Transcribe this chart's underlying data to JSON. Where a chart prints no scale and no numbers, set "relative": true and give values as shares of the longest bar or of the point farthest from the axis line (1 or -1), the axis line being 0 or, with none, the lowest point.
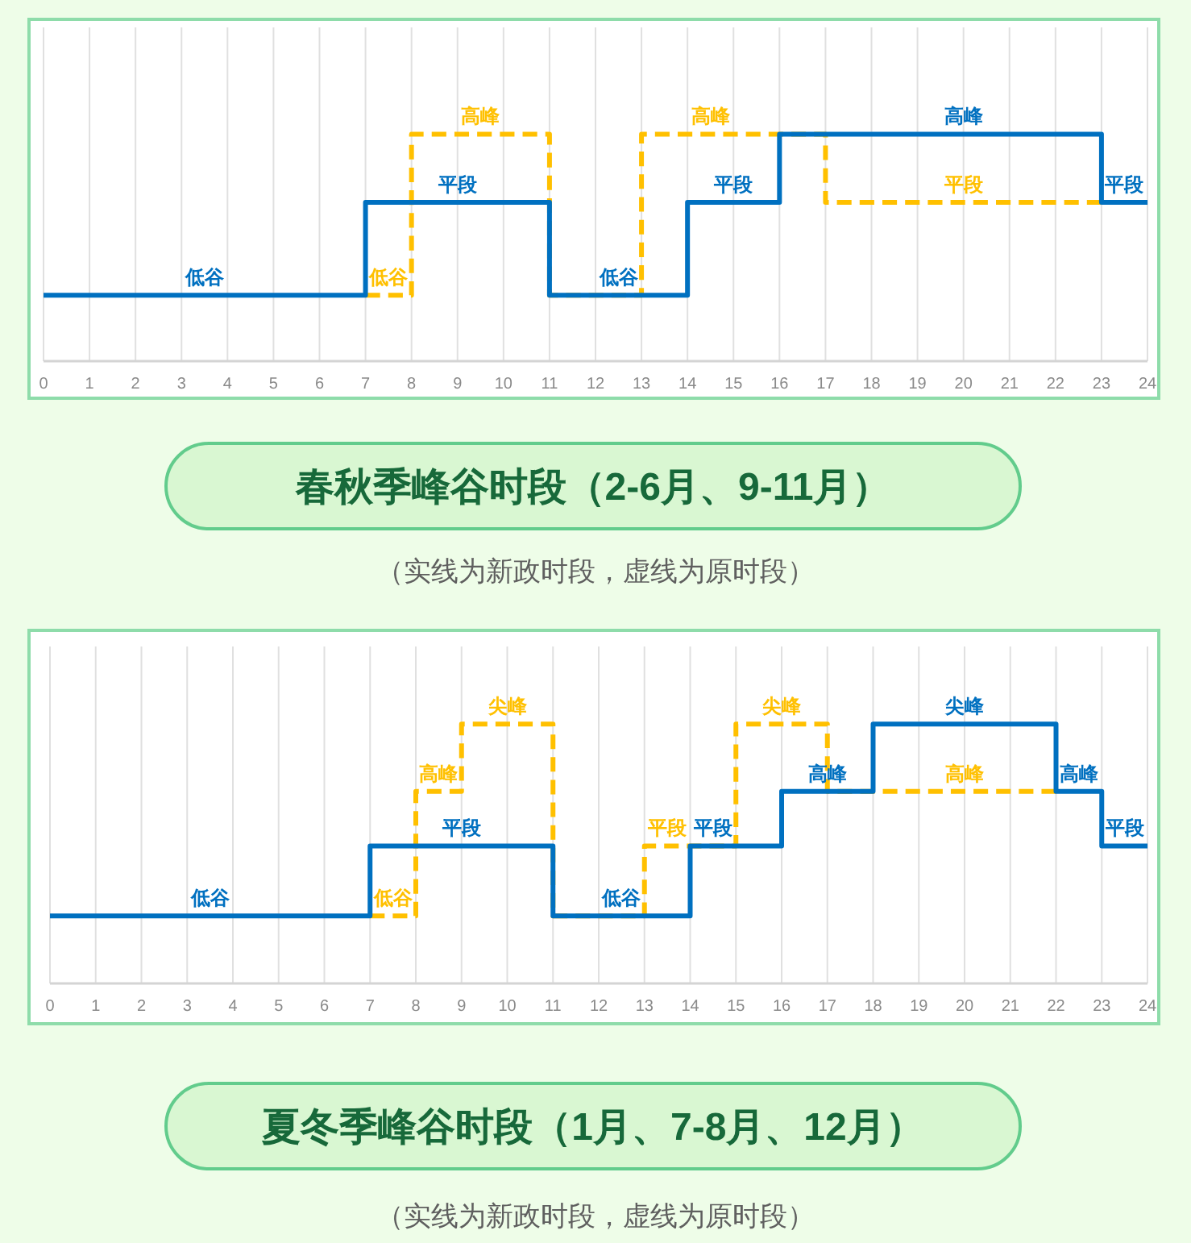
{
  "chart_data": [
    {
      "type": "step",
      "title": "春秋季峰谷时段（2-6月、9-11月）",
      "subtitle": "（实线为新政时段，虚线为原时段）",
      "relative": true,
      "xlim": [
        0,
        24
      ],
      "xticks": [
        0,
        1,
        2,
        3,
        4,
        5,
        6,
        7,
        8,
        9,
        10,
        11,
        12,
        13,
        14,
        15,
        16,
        17,
        18,
        19,
        20,
        21,
        22,
        23,
        24
      ],
      "grid": "x",
      "series": [
        {
          "color": "#ffc000",
          "line_style": "dashed",
          "x": [
            7,
            8,
            11,
            13,
            17,
            23
          ],
          "values": [
            0.29,
            1,
            0.29,
            1,
            0.7,
            0.7
          ]
        },
        {
          "color": "#0070c0",
          "line_style": "solid",
          "x": [
            0,
            7,
            11,
            14,
            16,
            23,
            24
          ],
          "values": [
            0.29,
            0.7,
            0.29,
            0.7,
            1,
            0.7,
            0.7
          ]
        }
      ],
      "annotations": [
        {
          "text": "低谷",
          "x": 3.5,
          "y": 0.29
        },
        {
          "text": "低谷",
          "x": 7.5,
          "y": 0.29
        },
        {
          "text": "平段",
          "x": 9,
          "y": 0.7
        },
        {
          "text": "高峰",
          "x": 9.5,
          "y": 1
        },
        {
          "text": "低谷",
          "x": 12.5,
          "y": 0.29
        },
        {
          "text": "高峰",
          "x": 14.5,
          "y": 1
        },
        {
          "text": "平段",
          "x": 15,
          "y": 0.7
        },
        {
          "text": "高峰",
          "x": 20,
          "y": 1
        },
        {
          "text": "平段",
          "x": 20,
          "y": 0.7
        },
        {
          "text": "平段",
          "x": 23.5,
          "y": 0.7
        }
      ]
    },
    {
      "type": "step",
      "title": "夏冬季峰谷时段（1月、7-8月、12月）",
      "subtitle": "（实线为新政时段，虚线为原时段）",
      "relative": true,
      "xlim": [
        0,
        24
      ],
      "xticks": [
        0,
        1,
        2,
        3,
        4,
        5,
        6,
        7,
        8,
        9,
        10,
        11,
        12,
        13,
        14,
        15,
        16,
        17,
        18,
        19,
        20,
        21,
        22,
        23,
        24
      ],
      "grid": "x",
      "series": [
        {
          "color": "#ffc000",
          "line_style": "dashed",
          "x": [
            7,
            8,
            9,
            11,
            13,
            15,
            17,
            22
          ],
          "values": [
            0.26,
            0.74,
            1,
            0.26,
            0.53,
            1,
            0.74,
            0.74
          ]
        },
        {
          "color": "#0070c0",
          "line_style": "solid",
          "x": [
            0,
            7,
            11,
            14,
            16,
            18,
            22,
            23,
            24
          ],
          "values": [
            0.26,
            0.53,
            0.26,
            0.53,
            0.74,
            1,
            0.74,
            0.53,
            0.53
          ]
        }
      ],
      "annotations": [
        {
          "text": "低谷",
          "x": 3.5,
          "y": 0.26
        },
        {
          "text": "低谷",
          "x": 7.5,
          "y": 0.26
        },
        {
          "text": "高峰",
          "x": 8.5,
          "y": 0.74
        },
        {
          "text": "平段",
          "x": 9,
          "y": 0.53
        },
        {
          "text": "尖峰",
          "x": 10,
          "y": 1
        },
        {
          "text": "低谷",
          "x": 12.5,
          "y": 0.26
        },
        {
          "text": "平段",
          "x": 13.5,
          "y": 0.53
        },
        {
          "text": "平段",
          "x": 14.5,
          "y": 0.53
        },
        {
          "text": "尖峰",
          "x": 16,
          "y": 1
        },
        {
          "text": "高峰",
          "x": 17,
          "y": 0.74
        },
        {
          "text": "尖峰",
          "x": 20,
          "y": 1
        },
        {
          "text": "高峰",
          "x": 20,
          "y": 0.74
        },
        {
          "text": "高峰",
          "x": 22.5,
          "y": 0.74
        },
        {
          "text": "平段",
          "x": 23.5,
          "y": 0.53
        }
      ]
    }
  ]
}
